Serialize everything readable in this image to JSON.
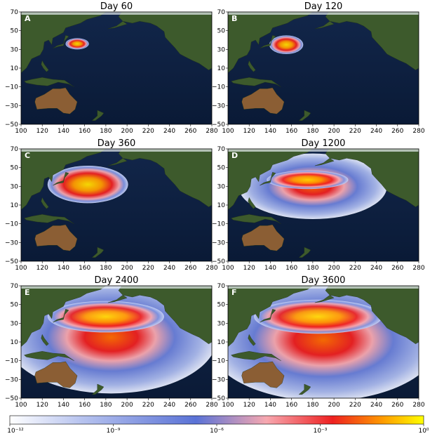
{
  "chart_data": [
    {
      "type": "heatmap",
      "panel": "A",
      "title": "Day 60",
      "plume": {
        "center": [
          153,
          36
        ],
        "half_width_deg": [
          11,
          6
        ]
      },
      "xlim": [
        100,
        280
      ],
      "ylim": [
        -50,
        70
      ],
      "xticks": [
        "100",
        "120",
        "140",
        "160",
        "180",
        "200",
        "220",
        "240",
        "260",
        "280"
      ],
      "yticks": [
        "70",
        "50",
        "30",
        "10",
        "−10",
        "−30",
        "−50"
      ]
    },
    {
      "type": "heatmap",
      "panel": "B",
      "title": "Day 120",
      "plume": {
        "center": [
          155,
          35
        ],
        "half_width_deg": [
          16,
          10
        ]
      },
      "xlim": [
        100,
        280
      ],
      "ylim": [
        -50,
        70
      ],
      "xticks": [
        "100",
        "120",
        "140",
        "160",
        "180",
        "200",
        "220",
        "240",
        "260",
        "280"
      ],
      "yticks": [
        "70",
        "50",
        "30",
        "10",
        "−10",
        "−30",
        "−50"
      ]
    },
    {
      "type": "heatmap",
      "panel": "C",
      "title": "Day 360",
      "plume": {
        "center": [
          163,
          32
        ],
        "half_width_deg": [
          38,
          20
        ]
      },
      "xlim": [
        100,
        280
      ],
      "ylim": [
        -50,
        70
      ],
      "xticks": [
        "100",
        "120",
        "140",
        "160",
        "180",
        "200",
        "220",
        "240",
        "260",
        "280"
      ],
      "yticks": [
        "70",
        "50",
        "30",
        "10",
        "−10",
        "−30",
        "−50"
      ]
    },
    {
      "type": "heatmap",
      "panel": "D",
      "title": "Day 1200",
      "plume": {
        "center": [
          180,
          30
        ],
        "half_width_deg": [
          70,
          35
        ]
      },
      "xlim": [
        100,
        280
      ],
      "ylim": [
        -50,
        70
      ],
      "xticks": [
        "100",
        "120",
        "140",
        "160",
        "180",
        "200",
        "220",
        "240",
        "260",
        "280"
      ],
      "yticks": [
        "70",
        "50",
        "30",
        "10",
        "−10",
        "−30",
        "−50"
      ]
    },
    {
      "type": "heatmap",
      "panel": "E",
      "title": "Day 2400",
      "plume": {
        "center": [
          185,
          15
        ],
        "half_width_deg": [
          100,
          60
        ]
      },
      "xlim": [
        100,
        280
      ],
      "ylim": [
        -50,
        70
      ],
      "xticks": [
        "100",
        "120",
        "140",
        "160",
        "180",
        "200",
        "220",
        "240",
        "260",
        "280"
      ],
      "yticks": [
        "70",
        "50",
        "30",
        "10",
        "−10",
        "−30",
        "−50"
      ]
    },
    {
      "type": "heatmap",
      "panel": "F",
      "title": "Day 3600",
      "plume": {
        "center": [
          190,
          12
        ],
        "half_width_deg": [
          110,
          65
        ]
      },
      "xlim": [
        100,
        280
      ],
      "ylim": [
        -50,
        70
      ],
      "xticks": [
        "100",
        "120",
        "140",
        "160",
        "180",
        "200",
        "220",
        "240",
        "260",
        "280"
      ],
      "yticks": [
        "70",
        "50",
        "30",
        "10",
        "−10",
        "−30",
        "−50"
      ]
    }
  ],
  "colorbar": {
    "scale": "log",
    "range": [
      1e-12,
      1
    ],
    "ticks": [
      {
        "label": "10⁻¹²",
        "value": 1e-12
      },
      {
        "label": "10⁻⁹",
        "value": 1e-09
      },
      {
        "label": "10⁻⁶",
        "value": 1e-06
      },
      {
        "label": "10⁻³",
        "value": 0.001
      },
      {
        "label": "10⁰",
        "value": 1
      }
    ],
    "colors": [
      "#ffffff",
      "#b8c4ef",
      "#5a72d6",
      "#f7a8b0",
      "#ee2020",
      "#ff9a00",
      "#ffff00"
    ]
  },
  "colors": {
    "ocean": "#0c1d3b",
    "ocean_deep": "#08162f",
    "land": "#3d5a2c",
    "desert": "#8b5e34",
    "ice": "#e6edf0"
  }
}
